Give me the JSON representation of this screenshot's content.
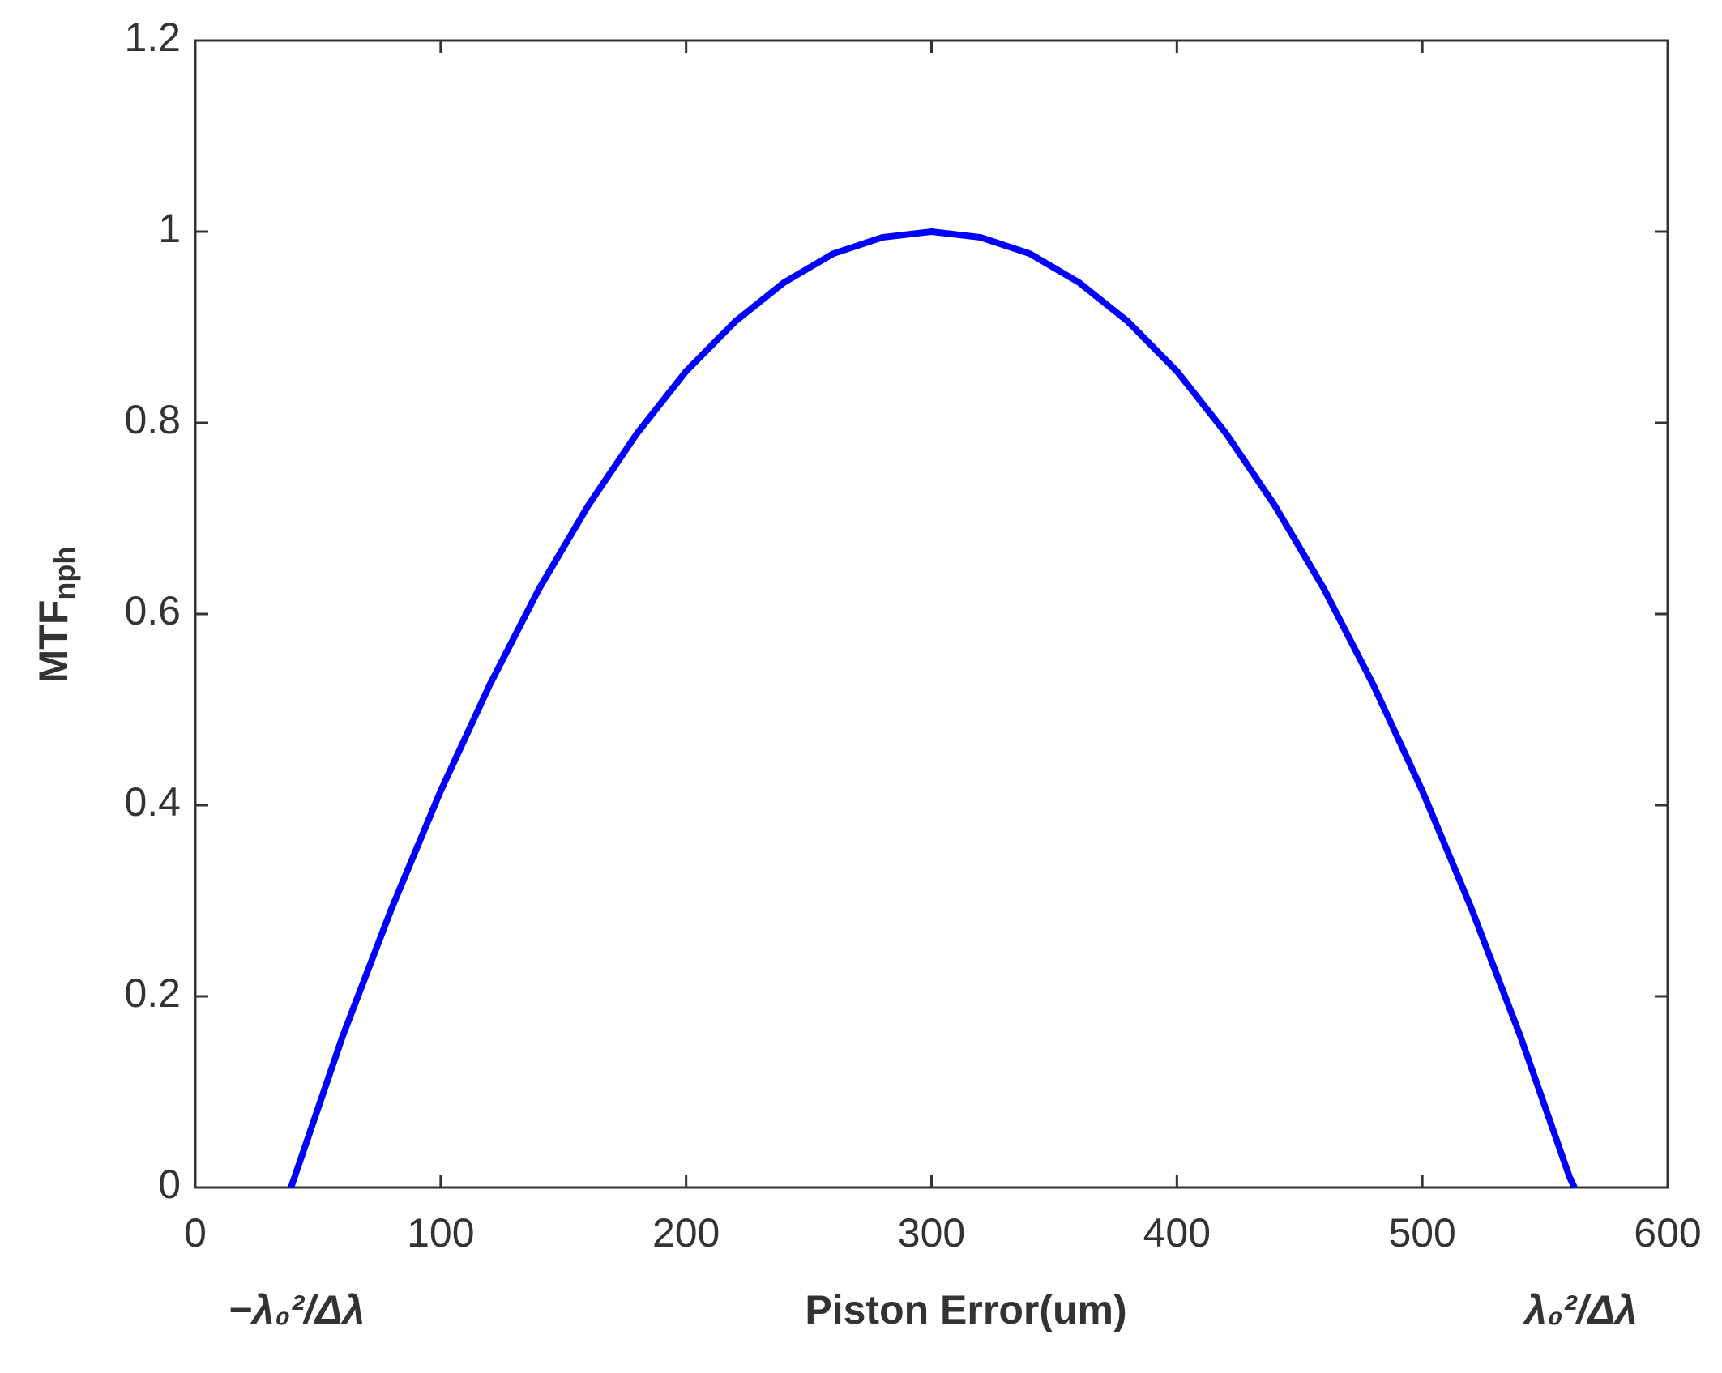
{
  "chart_data": {
    "type": "line",
    "xlabel": "Piston Error(um)",
    "ylabel": {
      "main": "MTF",
      "sub": "nph"
    },
    "annotations": [
      "−λ₀²/Δλ",
      "λ₀²/Δλ"
    ],
    "x": [
      39,
      60,
      80,
      100,
      120,
      140,
      160,
      180,
      200,
      220,
      240,
      260,
      280,
      300,
      320,
      340,
      360,
      380,
      400,
      420,
      440,
      460,
      480,
      500,
      520,
      540,
      560,
      562
    ],
    "series": [
      {
        "color": "#0000ff",
        "values": [
          0,
          0.158,
          0.292,
          0.415,
          0.526,
          0.626,
          0.713,
          0.789,
          0.854,
          0.906,
          0.947,
          0.977,
          0.994,
          1,
          0.994,
          0.977,
          0.947,
          0.906,
          0.854,
          0.789,
          0.713,
          0.626,
          0.526,
          0.415,
          0.292,
          0.158,
          0.011,
          0
        ]
      }
    ],
    "xlim": [
      0,
      600
    ],
    "xticks": [
      0,
      100,
      200,
      300,
      400,
      500,
      600
    ],
    "ylim": [
      0,
      1.2
    ],
    "yticks": [
      0,
      0.2,
      0.4,
      0.6,
      0.8,
      1,
      1.2
    ],
    "grid": false
  }
}
